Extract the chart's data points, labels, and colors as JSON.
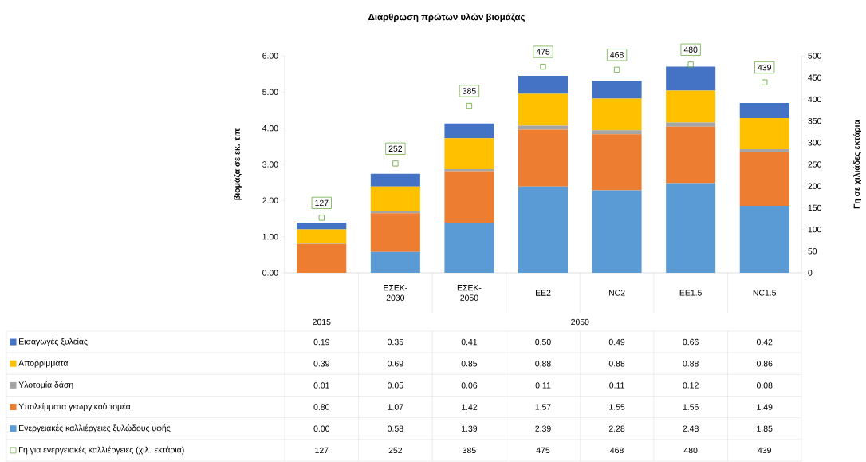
{
  "chart_data": {
    "type": "bar",
    "stacked": true,
    "title": "Διάρθρωση πρώτων υλών βιομάζας",
    "ylabel": "βιομάζα σε εκ. τιπ",
    "y2label": "Γη σε χιλιάδες εκτάρια",
    "categories": [
      null,
      "ΕΣΕΚ-2030",
      "ΕΣΕΚ-2050",
      "EE2",
      "NC2",
      "EE1.5",
      "NC1.5"
    ],
    "annotations": [
      "2015",
      "2050"
    ],
    "ylim": [
      0,
      6
    ],
    "yticks": [
      {
        "value": 0,
        "label": "0.00"
      },
      {
        "value": 1,
        "label": "1.00"
      },
      {
        "value": 2,
        "label": "2.00"
      },
      {
        "value": 3,
        "label": "3.00"
      },
      {
        "value": 4,
        "label": "4.00"
      },
      {
        "value": 5,
        "label": "5.00"
      },
      {
        "value": 6,
        "label": "6.00"
      }
    ],
    "y2lim": [
      0,
      500
    ],
    "y2ticks": [
      0,
      50,
      100,
      150,
      200,
      250,
      300,
      350,
      400,
      450,
      500
    ],
    "legend": "bottom",
    "series": [
      {
        "name": "Ενεργειακές καλλιέργειες ξυλώδους υφής",
        "color": "#5b9bd5",
        "values": [
          0.0,
          0.58,
          1.39,
          2.39,
          2.28,
          2.48,
          1.85
        ],
        "value_labels": [
          "0.00",
          "0.58",
          "1.39",
          "2.39",
          "2.28",
          "2.48",
          "1.85"
        ]
      },
      {
        "name": "Υπολείμματα γεωργικού τομέα",
        "color": "#ed7d31",
        "values": [
          0.8,
          1.07,
          1.42,
          1.57,
          1.55,
          1.56,
          1.49
        ],
        "value_labels": [
          "0.80",
          "1.07",
          "1.42",
          "1.57",
          "1.55",
          "1.56",
          "1.49"
        ]
      },
      {
        "name": "Υλοτομία δάση",
        "color": "#a5a5a5",
        "values": [
          0.01,
          0.05,
          0.06,
          0.11,
          0.11,
          0.12,
          0.08
        ],
        "value_labels": [
          "0.01",
          "0.05",
          "0.06",
          "0.11",
          "0.11",
          "0.12",
          "0.08"
        ]
      },
      {
        "name": "Απορρίμματα",
        "color": "#ffc000",
        "values": [
          0.39,
          0.69,
          0.85,
          0.88,
          0.88,
          0.88,
          0.86
        ],
        "value_labels": [
          "0.39",
          "0.69",
          "0.85",
          "0.88",
          "0.88",
          "0.88",
          "0.86"
        ]
      },
      {
        "name": "Εισαγωγές ξυλείας",
        "color": "#4472c4",
        "values": [
          0.19,
          0.35,
          0.41,
          0.5,
          0.49,
          0.66,
          0.42
        ],
        "value_labels": [
          "0.19",
          "0.35",
          "0.41",
          "0.50",
          "0.49",
          "0.66",
          "0.42"
        ]
      },
      {
        "name": "Γη για ενεργειακές καλλιέργειες (χιλ. εκτάρια)",
        "type": "scatter",
        "axis": "y2",
        "marker": "square",
        "color": "#70ad47",
        "values": [
          127,
          252,
          385,
          475,
          468,
          480,
          439
        ],
        "value_labels": [
          "127",
          "252",
          "385",
          "475",
          "468",
          "480",
          "439"
        ]
      }
    ]
  }
}
